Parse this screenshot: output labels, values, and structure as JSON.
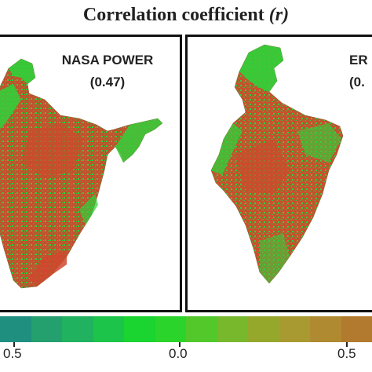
{
  "title": {
    "text": "Correlation coefficient",
    "symbol": "(r)"
  },
  "panels": [
    {
      "name": "NASA POWER",
      "r_label": "(0.47)",
      "r": 0.47
    },
    {
      "name": "ER",
      "r_label": "(0.",
      "r": null
    }
  ],
  "colorbar": {
    "tick_labels": [
      "0.5",
      "0.0",
      "0.5"
    ],
    "colors": [
      "#1f8f7f",
      "#24a06f",
      "#20b25e",
      "#1cc44a",
      "#1ad430",
      "#2bd42a",
      "#52c82a",
      "#78b82c",
      "#96a82c",
      "#a89a30",
      "#b08a30",
      "#b27a2e"
    ]
  },
  "map_colors": {
    "green": "#2fd23a",
    "red": "#d0462e",
    "mid": "#8a7a30"
  }
}
